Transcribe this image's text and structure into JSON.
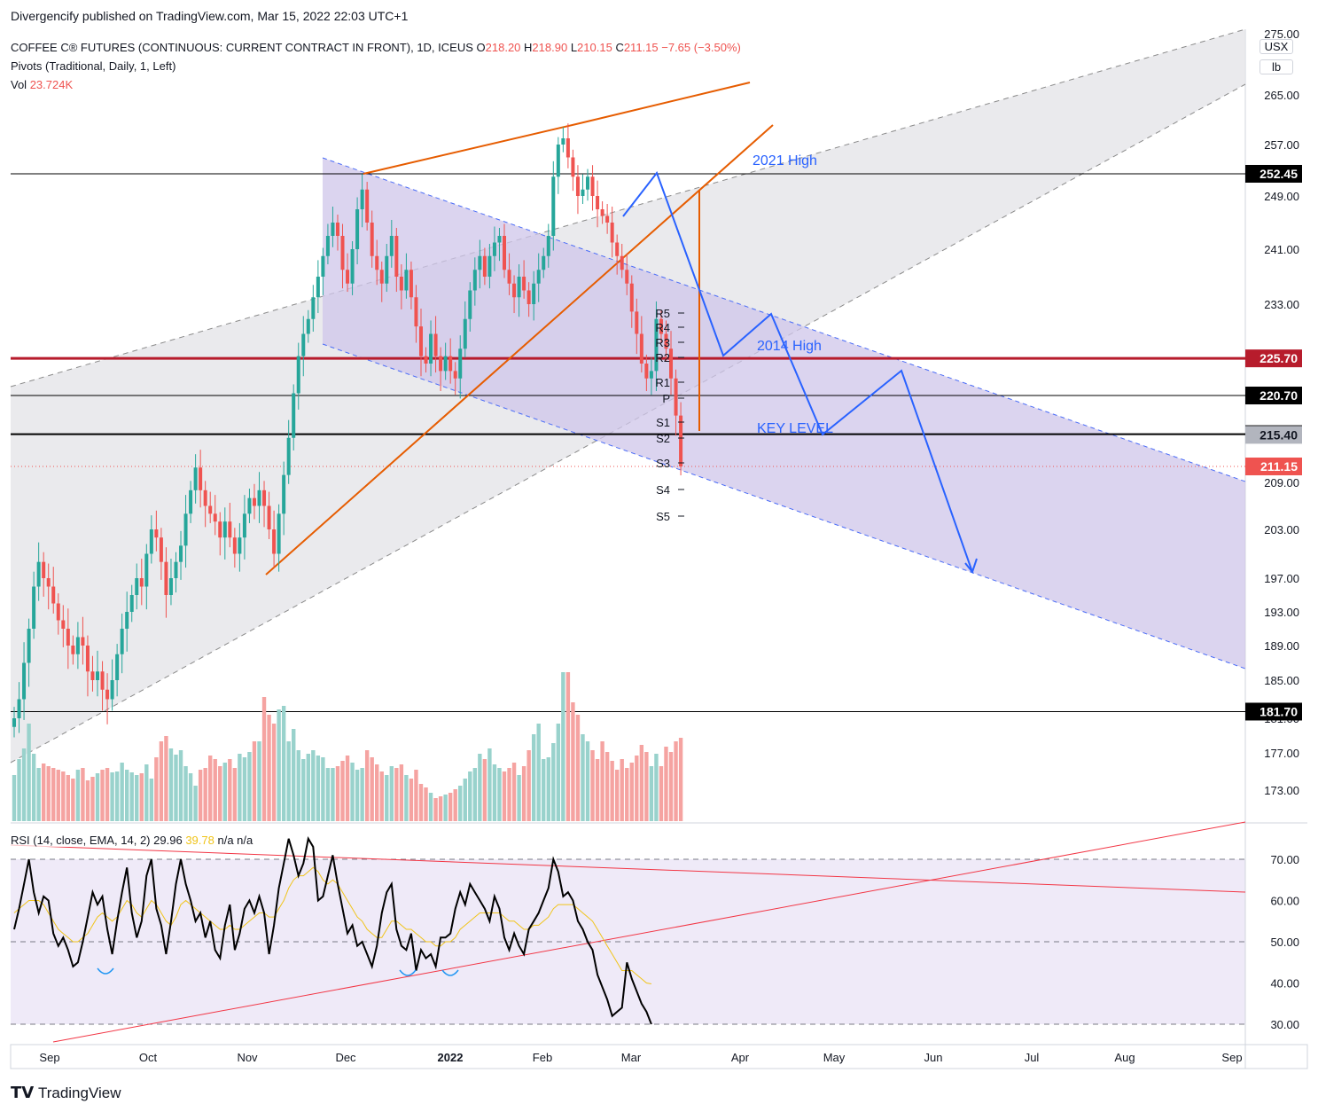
{
  "publisher_line": "Divergencify published on TradingView.com, Mar 15, 2022 22:03 UTC+1",
  "brand": "TradingView",
  "legend": {
    "symbol": "COFFEE C® FUTURES (CONTINUOUS: CURRENT CONTRACT IN FRONT), 1D, ICEUS",
    "o_label": "O",
    "o_val": "218.20",
    "h_label": "H",
    "h_val": "218.90",
    "l_label": "L",
    "l_val": "210.15",
    "c_label": "C",
    "c_val": "211.15",
    "change": "−7.65 (−3.50%)",
    "pivots": "Pivots (Traditional, Daily, 1, Left)",
    "vol_label": "Vol",
    "vol_val": "23.724K",
    "rsi_label": "RSI (14, close, EMA, 14, 2)",
    "rsi_val": "29.96",
    "rsi_ma_val": "39.78",
    "rsi_na": "n/a  n/a"
  },
  "units": [
    "USX",
    "lb"
  ],
  "colors": {
    "up": "#26a69a",
    "down": "#ef5350",
    "vol_up": "#99d2cc",
    "vol_down": "#f5a3a1",
    "channel_fill": "#e6e6ea",
    "desc_channel_fill": "#cfc6ea",
    "channel_dash": "#4a6cf7",
    "orange": "#e65c00",
    "projection": "#2962ff",
    "red_level": "#b71c2c",
    "rsi_line": "#000000",
    "rsi_ma": "#f0c419",
    "rsi_fill": "#efeaf8"
  },
  "annotations": {
    "high_2021": "2021 High",
    "high_2014": "2014 High",
    "key_level": "KEY LEVEL"
  },
  "pivot_labels": [
    "R5",
    "R4",
    "R3",
    "R2",
    "R1",
    "P",
    "S1",
    "S2",
    "S3",
    "S4",
    "S5"
  ],
  "chart_data": [
    {
      "type": "candlestick",
      "title": "COFFEE C® FUTURES (CONTINUOUS: CURRENT CONTRACT IN FRONT), 1D, ICEUS",
      "ylim": [
        170,
        275
      ],
      "y_ticks": [
        173,
        177,
        181,
        185,
        189,
        193,
        197,
        203,
        209,
        233,
        241,
        249,
        257,
        265
      ],
      "y_tick_labels": [
        "173.00",
        "177.00",
        "181.00",
        "185.00",
        "189.00",
        "193.00",
        "197.00",
        "203.00",
        "209.00",
        "233.00",
        "241.00",
        "249.00",
        "257.00",
        "265.00"
      ],
      "y_top_label": "275.00",
      "x_labels": [
        "Sep",
        "Oct",
        "Nov",
        "Dec",
        "2022",
        "Feb",
        "Mar",
        "Apr",
        "May",
        "Jun",
        "Jul",
        "Aug",
        "Sep"
      ],
      "price_levels": [
        {
          "value": 252.45,
          "label": "252.45",
          "style": "black"
        },
        {
          "value": 225.7,
          "label": "225.70",
          "style": "red"
        },
        {
          "value": 220.7,
          "label": "220.70",
          "style": "black"
        },
        {
          "value": 215.5,
          "label": "215.50",
          "style": "black"
        },
        {
          "value": 215.4,
          "label": "215.40",
          "style": "grey"
        },
        {
          "value": 211.15,
          "label": "211.15",
          "style": "last"
        },
        {
          "value": 181.7,
          "label": "181.70",
          "style": "black"
        }
      ],
      "closes": [
        181,
        183,
        187,
        191,
        196,
        199,
        197,
        196,
        194,
        192,
        191,
        189,
        188,
        190,
        189,
        186,
        185,
        186,
        184,
        183,
        185,
        188,
        191,
        193,
        195,
        197,
        196,
        200,
        203,
        202,
        199,
        195,
        197,
        199,
        201,
        205,
        208,
        211,
        208,
        206,
        205,
        204,
        202,
        204,
        202,
        200,
        202,
        205,
        207,
        206,
        208,
        206,
        203,
        200,
        205,
        210,
        215,
        221,
        226,
        229,
        231,
        234,
        237,
        240,
        243,
        245,
        243,
        238,
        236,
        241,
        247,
        250,
        245,
        240,
        238,
        236,
        240,
        243,
        237,
        235,
        238,
        234,
        230,
        226,
        225,
        229,
        226,
        224,
        226,
        224,
        223,
        227,
        231,
        235,
        238,
        240,
        237,
        240,
        242,
        243,
        238,
        236,
        234,
        237,
        235,
        233,
        236,
        238,
        240,
        243,
        252,
        257,
        258,
        255,
        252,
        249,
        250,
        252,
        249,
        247,
        246,
        245,
        242,
        240,
        238,
        236,
        232,
        229,
        225,
        223,
        224,
        231,
        229,
        227,
        223,
        218,
        211.15
      ],
      "volume_ylim": [
        0,
        240
      ],
      "volumes": [
        52,
        70,
        82,
        110,
        76,
        60,
        65,
        62,
        60,
        58,
        56,
        52,
        48,
        58,
        60,
        46,
        50,
        54,
        58,
        60,
        55,
        56,
        66,
        58,
        55,
        52,
        54,
        64,
        48,
        72,
        90,
        96,
        82,
        75,
        80,
        62,
        54,
        40,
        58,
        60,
        74,
        70,
        62,
        66,
        70,
        60,
        76,
        72,
        78,
        90,
        90,
        140,
        120,
        110,
        126,
        130,
        90,
        104,
        80,
        70,
        76,
        80,
        74,
        72,
        60,
        60,
        62,
        68,
        74,
        66,
        58,
        60,
        80,
        72,
        64,
        56,
        52,
        62,
        60,
        64,
        52,
        48,
        58,
        42,
        38,
        32,
        26,
        28,
        30,
        32,
        36,
        40,
        48,
        56,
        60,
        76,
        70,
        82,
        64,
        60,
        56,
        60,
        66,
        52,
        62,
        80,
        98,
        110,
        70,
        72,
        88,
        110,
        168,
        168,
        134,
        120,
        98,
        90,
        80,
        70,
        90,
        78,
        68,
        58,
        70,
        60,
        66,
        74,
        86,
        78,
        62,
        76,
        62,
        84,
        78,
        90,
        94
      ]
    },
    {
      "type": "line",
      "title": "RSI (14, close, EMA, 14, 2)",
      "ylim": [
        28,
        74
      ],
      "y_ticks": [
        30,
        40,
        50,
        60,
        70
      ],
      "y_tick_labels": [
        "30.00",
        "40.00",
        "50.00",
        "60.00",
        "70.00"
      ],
      "rsi": [
        53,
        58,
        64,
        70,
        62,
        57,
        61,
        60,
        52,
        49,
        51,
        48,
        44,
        45,
        50,
        56,
        62,
        59,
        61,
        53,
        47,
        55,
        62,
        68,
        57,
        51,
        55,
        66,
        70,
        58,
        54,
        47,
        55,
        64,
        70,
        64,
        60,
        55,
        57,
        51,
        55,
        48,
        46,
        54,
        59,
        48,
        52,
        58,
        60,
        57,
        61,
        57,
        47,
        54,
        63,
        69,
        75,
        71,
        66,
        69,
        75,
        73,
        60,
        61,
        66,
        71,
        64,
        58,
        52,
        54,
        49,
        50,
        47,
        44,
        49,
        57,
        62,
        64,
        53,
        49,
        48,
        52,
        43,
        48,
        46,
        47,
        44,
        51,
        51,
        52,
        58,
        62,
        59,
        64,
        62,
        60,
        58,
        55,
        61,
        58,
        51,
        48,
        52,
        49,
        47,
        53,
        55,
        57,
        60,
        63,
        70,
        67,
        61,
        62,
        60,
        55,
        53,
        50,
        48,
        42,
        39,
        36,
        32,
        33,
        34,
        45,
        41,
        38,
        35,
        33,
        30
      ],
      "rsi_ma": [
        57,
        58,
        59,
        60,
        60,
        60,
        59,
        57,
        55,
        53,
        52,
        51,
        50,
        50,
        51,
        52,
        54,
        56,
        57,
        56,
        55,
        56,
        58,
        60,
        59,
        57,
        56,
        58,
        60,
        59,
        57,
        55,
        54,
        56,
        59,
        60,
        59,
        58,
        57,
        56,
        55,
        54,
        53,
        53,
        54,
        53,
        53,
        54,
        55,
        56,
        57,
        57,
        56,
        56,
        58,
        60,
        63,
        65,
        66,
        66,
        67,
        68,
        67,
        65,
        64,
        65,
        64,
        62,
        60,
        58,
        56,
        55,
        53,
        52,
        51,
        51,
        53,
        55,
        55,
        54,
        53,
        53,
        52,
        51,
        50,
        50,
        49,
        49,
        50,
        50,
        51,
        53,
        54,
        55,
        56,
        57,
        57,
        57,
        57,
        57,
        56,
        55,
        55,
        54,
        53,
        53,
        54,
        54,
        55,
        56,
        58,
        59,
        59,
        59,
        59,
        58,
        57,
        56,
        55,
        53,
        51,
        49,
        47,
        45,
        43,
        43,
        43,
        42,
        41,
        40,
        39.78
      ]
    }
  ]
}
